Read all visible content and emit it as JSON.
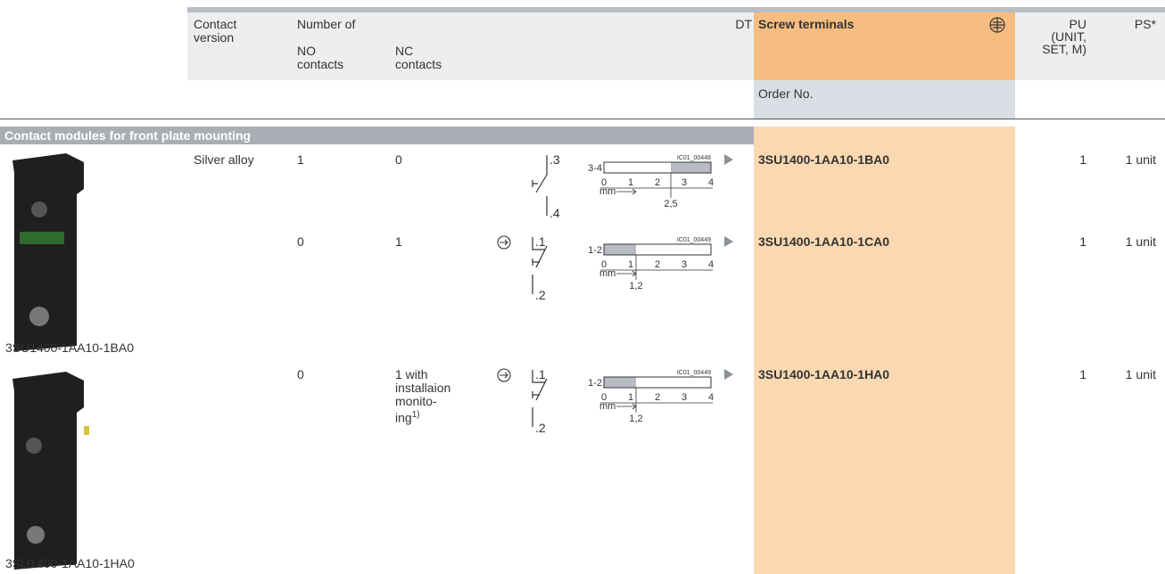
{
  "header": {
    "contact_version": "Contact version",
    "number_of": "Number of",
    "no_contacts": "NO contacts",
    "nc_contacts": "NC contacts",
    "dt": "DT",
    "screw_terminals": "Screw terminals",
    "order_no": "Order No.",
    "pu": [
      "PU",
      "(UNIT,",
      "SET, M)"
    ],
    "ps": "PS*"
  },
  "section": "Contact modules for front plate mounting",
  "images": [
    {
      "caption": "3SU1400-1AA10-1BA0"
    },
    {
      "caption": "3SU1400-1AA10-1HA0"
    }
  ],
  "rows": [
    {
      "version": "Silver alloy",
      "no": "1",
      "nc": [
        "0"
      ],
      "symbol": {
        "top": ".3",
        "bottom": ".4"
      },
      "diagram": {
        "code": "IC01_00448",
        "terminals": "3-4",
        "scale": [
          "0",
          "1",
          "2",
          "3",
          "4"
        ],
        "unit": "mm",
        "marker": "2,5"
      },
      "order_no": "3SU1400-1AA10-1BA0",
      "pu": "1",
      "ps": "1 unit"
    },
    {
      "no": "0",
      "nc": [
        "1"
      ],
      "symbol": {
        "top": ".1",
        "bottom": ".2"
      },
      "diagram": {
        "code": "IC01_00449",
        "terminals": "1-2",
        "scale": [
          "0",
          "1",
          "2",
          "3",
          "4"
        ],
        "unit": "mm",
        "marker": "1,2"
      },
      "order_no": "3SU1400-1AA10-1CA0",
      "pu": "1",
      "ps": "1 unit"
    },
    {
      "no": "0",
      "nc": [
        "1 with",
        "installaion",
        "monito-",
        "ing"
      ],
      "nc_note": "1)",
      "symbol": {
        "top": ".1",
        "bottom": ".2"
      },
      "diagram": {
        "code": "IC01_00449",
        "terminals": "1-2",
        "scale": [
          "0",
          "1",
          "2",
          "3",
          "4"
        ],
        "unit": "mm",
        "marker": "1,2"
      },
      "order_no": "3SU1400-1AA10-1HA0",
      "pu": "1",
      "ps": "1 unit"
    }
  ]
}
